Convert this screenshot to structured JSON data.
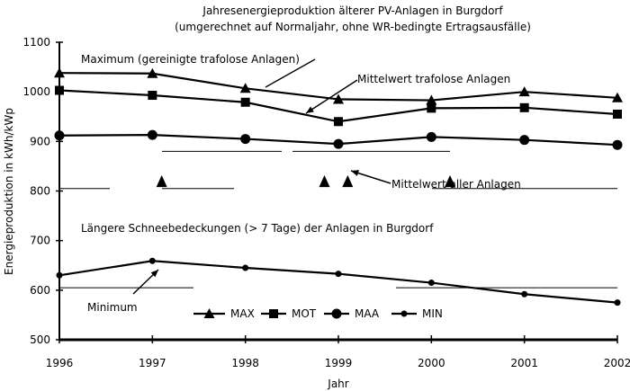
{
  "chart_data": {
    "type": "line",
    "title": "Jahresenergieproduktion älterer PV-Anlagen in Burgdorf",
    "subtitle": "(umgerechnet auf Normaljahr, ohne WR-bedingte Ertragsausfälle)",
    "xlabel": "Jahr",
    "ylabel": "Energieproduktion in kWh/kWp",
    "x": [
      1996,
      1997,
      1998,
      1999,
      2000,
      2001,
      2002
    ],
    "xlim": [
      1996,
      2002
    ],
    "ylim": [
      500,
      1100
    ],
    "yticks": [
      500,
      600,
      700,
      800,
      900,
      1000,
      1100
    ],
    "series": [
      {
        "name": "MAX",
        "marker": "triangle",
        "values": [
          1038,
          1037,
          1007,
          985,
          983,
          1000,
          988
        ]
      },
      {
        "name": "MOT",
        "marker": "square",
        "values": [
          1003,
          993,
          979,
          940,
          967,
          968,
          955
        ]
      },
      {
        "name": "MAA",
        "marker": "circle",
        "values": [
          912,
          913,
          905,
          895,
          909,
          903,
          893
        ]
      },
      {
        "name": "MIN",
        "marker": "dot",
        "values": [
          630,
          659,
          645,
          633,
          615,
          592,
          575
        ]
      }
    ],
    "annotations": [
      {
        "id": "max",
        "text": "Maximum (gereinigte trafolose Anlagen)"
      },
      {
        "id": "mot",
        "text": "Mittelwert trafolose Anlagen"
      },
      {
        "id": "maa",
        "text": "Mittelwert aller Anlagen"
      },
      {
        "id": "snow",
        "text": "Längere Schneebedeckungen (> 7 Tage) der Anlagen in Burgdorf"
      },
      {
        "id": "min",
        "text": "Minimum"
      }
    ],
    "snow_events": [
      1997.1,
      1998.85,
      1999.1,
      2000.2
    ],
    "legend_position": "bottom"
  }
}
